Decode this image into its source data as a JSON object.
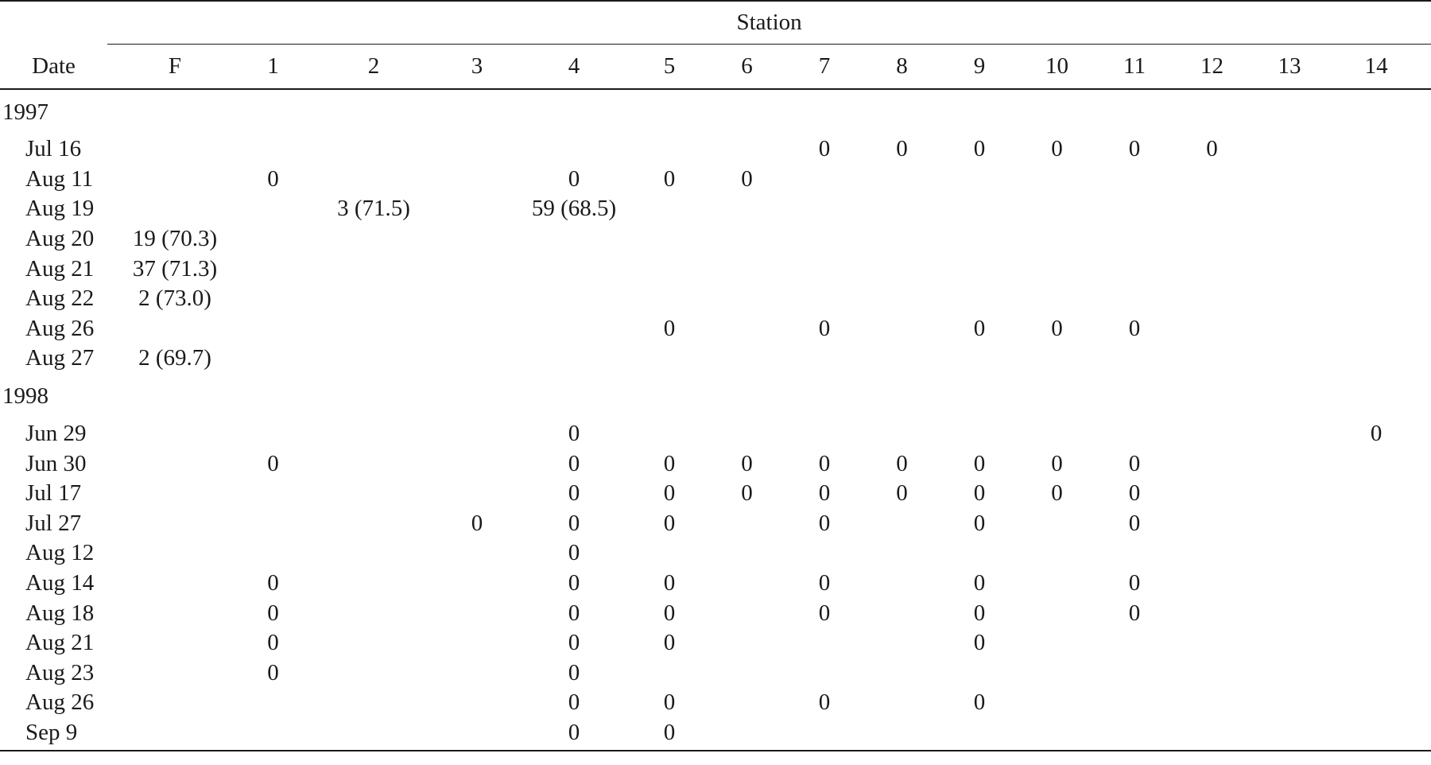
{
  "table": {
    "group_header": "Station",
    "columns": [
      "Date",
      "F",
      "1",
      "2",
      "3",
      "4",
      "5",
      "6",
      "7",
      "8",
      "9",
      "10",
      "11",
      "12",
      "13",
      "14"
    ],
    "sections": [
      {
        "year": "1997",
        "rows": [
          {
            "date": "Jul 16",
            "cells": [
              "",
              "",
              "",
              "",
              "",
              "",
              "",
              "0",
              "0",
              "0",
              "0",
              "0",
              "0",
              "",
              ""
            ]
          },
          {
            "date": "Aug 11",
            "cells": [
              "",
              "0",
              "",
              "",
              "0",
              "0",
              "0",
              "",
              "",
              "",
              "",
              "",
              "",
              "",
              ""
            ]
          },
          {
            "date": "Aug 19",
            "cells": [
              "",
              "",
              "3 (71.5)",
              "",
              "59 (68.5)",
              "",
              "",
              "",
              "",
              "",
              "",
              "",
              "",
              "",
              ""
            ]
          },
          {
            "date": "Aug 20",
            "cells": [
              "19 (70.3)",
              "",
              "",
              "",
              "",
              "",
              "",
              "",
              "",
              "",
              "",
              "",
              "",
              "",
              ""
            ]
          },
          {
            "date": "Aug 21",
            "cells": [
              "37 (71.3)",
              "",
              "",
              "",
              "",
              "",
              "",
              "",
              "",
              "",
              "",
              "",
              "",
              "",
              ""
            ]
          },
          {
            "date": "Aug 22",
            "cells": [
              "2 (73.0)",
              "",
              "",
              "",
              "",
              "",
              "",
              "",
              "",
              "",
              "",
              "",
              "",
              "",
              ""
            ]
          },
          {
            "date": "Aug 26",
            "cells": [
              "",
              "",
              "",
              "",
              "",
              "0",
              "",
              "0",
              "",
              "0",
              "0",
              "0",
              "",
              "",
              ""
            ]
          },
          {
            "date": "Aug 27",
            "cells": [
              "2 (69.7)",
              "",
              "",
              "",
              "",
              "",
              "",
              "",
              "",
              "",
              "",
              "",
              "",
              "",
              ""
            ]
          }
        ]
      },
      {
        "year": "1998",
        "rows": [
          {
            "date": "Jun 29",
            "cells": [
              "",
              "",
              "",
              "",
              "0",
              "",
              "",
              "",
              "",
              "",
              "",
              "",
              "",
              "",
              "0"
            ]
          },
          {
            "date": "Jun 30",
            "cells": [
              "",
              "0",
              "",
              "",
              "0",
              "0",
              "0",
              "0",
              "0",
              "0",
              "0",
              "0",
              "",
              "",
              ""
            ]
          },
          {
            "date": "Jul 17",
            "cells": [
              "",
              "",
              "",
              "",
              "0",
              "0",
              "0",
              "0",
              "0",
              "0",
              "0",
              "0",
              "",
              "",
              ""
            ]
          },
          {
            "date": "Jul 27",
            "cells": [
              "",
              "",
              "",
              "0",
              "0",
              "0",
              "",
              "0",
              "",
              "0",
              "",
              "0",
              "",
              "",
              ""
            ]
          },
          {
            "date": "Aug 12",
            "cells": [
              "",
              "",
              "",
              "",
              "0",
              "",
              "",
              "",
              "",
              "",
              "",
              "",
              "",
              "",
              ""
            ]
          },
          {
            "date": "Aug 14",
            "cells": [
              "",
              "0",
              "",
              "",
              "0",
              "0",
              "",
              "0",
              "",
              "0",
              "",
              "0",
              "",
              "",
              ""
            ]
          },
          {
            "date": "Aug 18",
            "cells": [
              "",
              "0",
              "",
              "",
              "0",
              "0",
              "",
              "0",
              "",
              "0",
              "",
              "0",
              "",
              "",
              ""
            ]
          },
          {
            "date": "Aug 21",
            "cells": [
              "",
              "0",
              "",
              "",
              "0",
              "0",
              "",
              "",
              "",
              "0",
              "",
              "",
              "",
              "",
              ""
            ]
          },
          {
            "date": "Aug 23",
            "cells": [
              "",
              "0",
              "",
              "",
              "0",
              "",
              "",
              "",
              "",
              "",
              "",
              "",
              "",
              "",
              ""
            ]
          },
          {
            "date": "Aug 26",
            "cells": [
              "",
              "",
              "",
              "",
              "0",
              "0",
              "",
              "0",
              "",
              "0",
              "",
              "",
              "",
              "",
              ""
            ]
          },
          {
            "date": "Sep 9",
            "cells": [
              "",
              "",
              "",
              "",
              "0",
              "0",
              "",
              "",
              "",
              "",
              "",
              "",
              "",
              "",
              ""
            ]
          }
        ]
      }
    ]
  }
}
